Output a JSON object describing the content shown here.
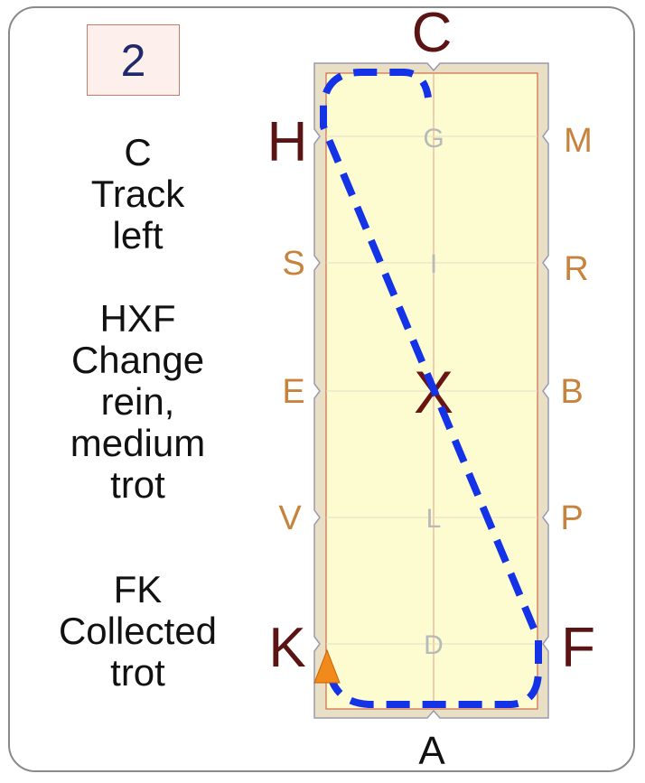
{
  "step_number": "2",
  "instructions": [
    {
      "id": "c-track-left",
      "lines": [
        "C",
        "Track",
        "left"
      ]
    },
    {
      "id": "hxf-change-rein",
      "lines": [
        "HXF",
        "Change",
        "rein,",
        "medium",
        "trot"
      ]
    },
    {
      "id": "fk-collected-trot",
      "lines": [
        "FK",
        "Collected",
        "trot"
      ]
    }
  ],
  "arena": {
    "end_letters": {
      "top": "C",
      "bottom": "A"
    },
    "left_letters": [
      "H",
      "S",
      "E",
      "V",
      "K"
    ],
    "right_letters": [
      "M",
      "R",
      "B",
      "P",
      "F"
    ],
    "centerline_letters": [
      "G",
      "I",
      "X",
      "L",
      "D"
    ]
  },
  "colors": {
    "arena_fill": "#fdfcd0",
    "arena_border": "#e8dfc4",
    "path": "#1433e6",
    "marker": "#f28a1b",
    "big_letters": "#5a1414",
    "side_letters": "#c7833b",
    "center_letters": "#b9b9b9"
  },
  "path_style": "dashed",
  "marker_icon": "orange-triangle-start"
}
